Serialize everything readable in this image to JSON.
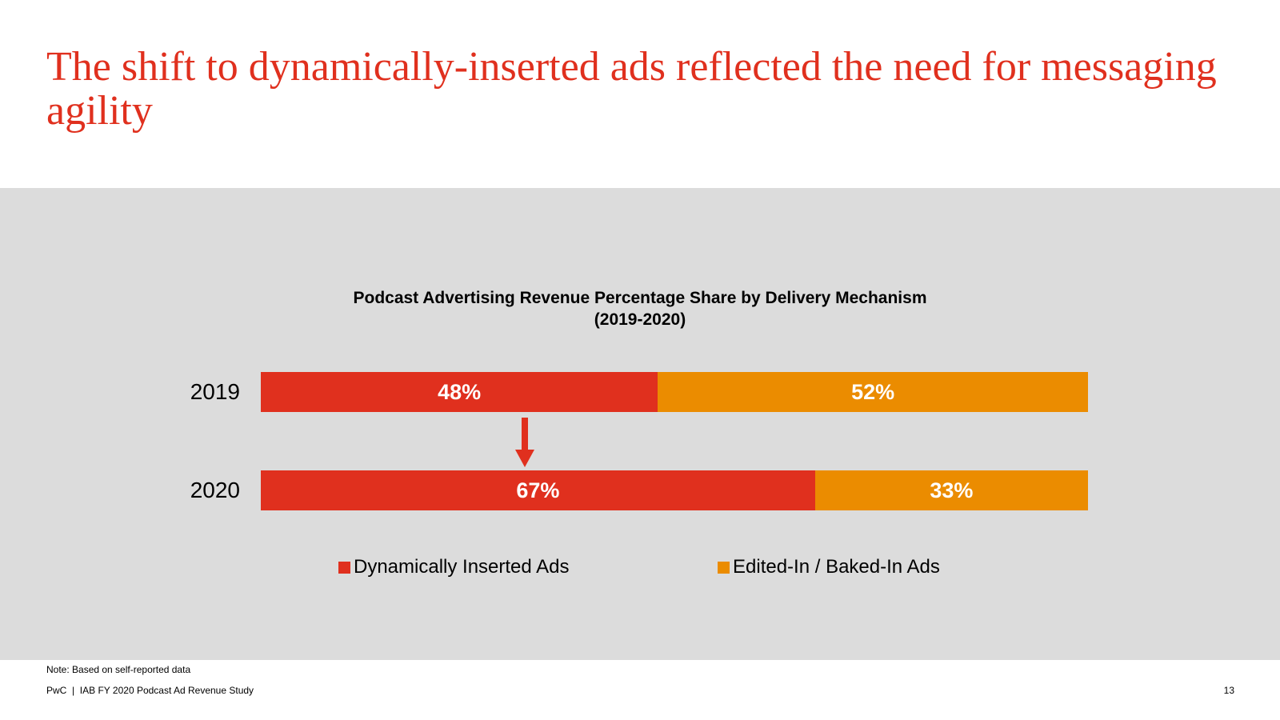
{
  "slide": {
    "title": "The shift to dynamically-inserted ads reflected the need for messaging agility",
    "note": "Note: Based on self-reported data",
    "footer": "PwC  |  IAB FY 2020 Podcast Ad Revenue Study",
    "page_number": "13"
  },
  "chart_data": {
    "type": "bar",
    "orientation": "horizontal",
    "stacked": true,
    "title_line1": "Podcast Advertising Revenue Percentage Share by Delivery Mechanism",
    "title_line2": "(2019-2020)",
    "categories": [
      "2019",
      "2020"
    ],
    "series": [
      {
        "name": "Dynamically Inserted Ads",
        "color": "#e0301e",
        "values": [
          48,
          67
        ],
        "labels": [
          "48%",
          "67%"
        ]
      },
      {
        "name": "Edited-In / Baked-In Ads",
        "color": "#eb8c00",
        "values": [
          52,
          33
        ],
        "labels": [
          "52%",
          "33%"
        ]
      }
    ],
    "xlim": [
      0,
      100
    ],
    "legend": "bottom",
    "annotation": "down-arrow from 2019 to 2020 on dynamically inserted share"
  }
}
